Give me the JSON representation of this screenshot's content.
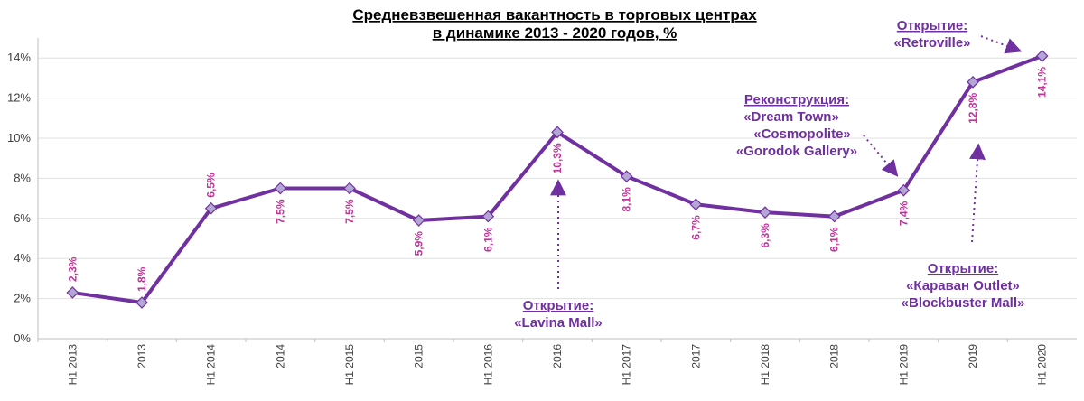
{
  "chart_data": {
    "type": "line",
    "title": [
      "Средневзвешенная вакантность в торговых центрах",
      "в динамике 2013 - 2020 годов, %"
    ],
    "xlabel": "",
    "ylabel": "",
    "categories": [
      "H1 2013",
      "2013",
      "H1 2014",
      "2014",
      "H1 2015",
      "2015",
      "H1 2016",
      "2016",
      "H1 2017",
      "2017",
      "H1 2018",
      "2018",
      "H1 2019",
      "2019",
      "H1 2020"
    ],
    "series": [
      {
        "values": [
          2.3,
          1.8,
          6.5,
          7.5,
          7.5,
          5.9,
          6.1,
          10.3,
          8.1,
          6.7,
          6.3,
          6.1,
          7.4,
          12.8,
          14.1
        ],
        "labels": [
          "2,3%",
          "1,8%",
          "6,5%",
          "7,5%",
          "7,5%",
          "5,9%",
          "6,1%",
          "10,3%",
          "8,1%",
          "6,7%",
          "6,3%",
          "6,1%",
          "7,4%",
          "12,8%",
          "14,1%"
        ]
      }
    ],
    "ylim": [
      0,
      15
    ],
    "yticks": [
      0,
      2,
      4,
      6,
      8,
      10,
      12,
      14
    ],
    "ytick_labels": [
      "0%",
      "2%",
      "4%",
      "6%",
      "8%",
      "10%",
      "12%",
      "14%"
    ],
    "grid": true,
    "legend": "none",
    "colors": {
      "line": "#7030a0",
      "marker_fill": "#b4a7d6",
      "marker_stroke": "#7030a0",
      "data_label": "#c0339b",
      "annotation": "#7030a0",
      "grid": "#e0e0e0"
    },
    "annotations": [
      {
        "lines": [
          "Открытие:",
          "«Lavina Mall»"
        ],
        "points_to": "2016"
      },
      {
        "lines": [
          "Реконструкция:",
          "«Dream Town»",
          "«Cosmopolite»",
          "«Gorodok Gallery»"
        ],
        "points_to": "H1 2019"
      },
      {
        "lines": [
          "Открытие:",
          "«Караван Outlet»",
          "«Blockbuster Mall»"
        ],
        "points_to": "2019"
      },
      {
        "lines": [
          "Открытие:",
          "«Retroville»"
        ],
        "points_to": "H1 2020"
      }
    ]
  }
}
